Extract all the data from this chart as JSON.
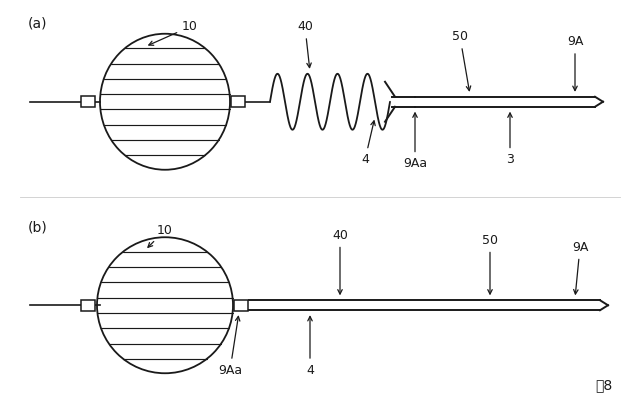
{
  "bg_color": "#ffffff",
  "line_color": "#1a1a1a",
  "fig_label": "囤8",
  "panel_a_label": "(a)",
  "panel_b_label": "(b)"
}
